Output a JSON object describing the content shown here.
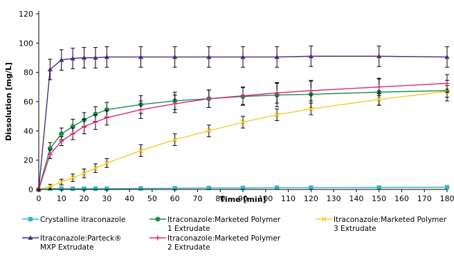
{
  "chart_data": {
    "type": "line",
    "xlabel": "Time [min]",
    "ylabel": "Dissolution [mg/L]",
    "xlim": [
      0,
      180
    ],
    "ylim": [
      0,
      120
    ],
    "xticks": [
      0,
      10,
      20,
      30,
      40,
      50,
      60,
      70,
      80,
      90,
      100,
      110,
      120,
      130,
      140,
      150,
      160,
      170,
      180
    ],
    "yticks": [
      0,
      20,
      40,
      60,
      80,
      100,
      120
    ],
    "grid": false,
    "legend_position": "bottom",
    "series": [
      {
        "name": "Crystalline itraconazole",
        "legend_lines": [
          "Crystalline itraconazole"
        ],
        "color": "#33b5c6",
        "marker": "square",
        "x": [
          0,
          5,
          10,
          15,
          20,
          25,
          30,
          45,
          60,
          75,
          90,
          105,
          120,
          150,
          180
        ],
        "y": [
          0,
          0.5,
          0.5,
          0.5,
          0.5,
          0.5,
          0.5,
          0.7,
          0.8,
          1.0,
          1.0,
          1.2,
          1.2,
          1.3,
          1.5
        ],
        "err": [
          0,
          0,
          0,
          0,
          0,
          0,
          0,
          0,
          0,
          0,
          0,
          0,
          0,
          0,
          0
        ]
      },
      {
        "name": "Itraconazole:Marketed Polymer 1 Extrudate",
        "legend_lines": [
          "Itraconazole:Marketed Polymer",
          "1 Extrudate"
        ],
        "color": "#1e8a4a",
        "marker": "circle",
        "x": [
          0,
          5,
          10,
          15,
          20,
          25,
          30,
          45,
          60,
          75,
          90,
          105,
          120,
          150,
          180
        ],
        "y": [
          0,
          28,
          38,
          43,
          47.5,
          51.5,
          54.5,
          58,
          60.5,
          62,
          63.5,
          64.5,
          65,
          66.5,
          67.5
        ],
        "err": [
          0,
          4,
          4,
          5,
          5,
          5,
          5,
          6,
          6,
          6,
          6,
          8,
          9,
          9,
          7
        ]
      },
      {
        "name": "Itraconazole:Marketed Polymer 3 Extrudate",
        "legend_lines": [
          "Itraconazole:Marketed Polymer",
          "3 Extrudate"
        ],
        "color": "#f2cc2e",
        "marker": "x",
        "x": [
          0,
          5,
          10,
          15,
          20,
          25,
          30,
          45,
          60,
          75,
          90,
          105,
          120,
          150,
          180
        ],
        "y": [
          0,
          2,
          5,
          8,
          11,
          14.5,
          18,
          26.5,
          34,
          40,
          46,
          51,
          55,
          61.5,
          67
        ],
        "err": [
          0,
          1.5,
          2,
          2.5,
          3,
          3,
          3,
          4,
          4,
          4,
          4,
          4,
          4,
          4,
          4
        ]
      },
      {
        "name": "Itraconazole:Parteck® MXP Extrudate",
        "legend_lines": [
          "Itraconazole:Parteck®",
          "MXP Extrudate"
        ],
        "color": "#4a2a7c",
        "marker": "triangle",
        "x": [
          0,
          5,
          10,
          15,
          20,
          25,
          30,
          45,
          60,
          75,
          90,
          105,
          120,
          150,
          180
        ],
        "y": [
          0,
          82,
          88.5,
          89.5,
          90,
          90,
          90.5,
          90.5,
          90.5,
          90.5,
          90.5,
          90.5,
          91,
          91,
          90.5
        ],
        "err": [
          0,
          7,
          7,
          7,
          7,
          7,
          7,
          7,
          7,
          7,
          7,
          7,
          7,
          7,
          7
        ]
      },
      {
        "name": "Itraconazole:Marketed Polymer 2 Extrudate",
        "legend_lines": [
          "Itraconazole:Marketed Polymer",
          "2 Extrudate"
        ],
        "color": "#d6287a",
        "marker": "plus",
        "x": [
          0,
          5,
          10,
          15,
          20,
          25,
          30,
          45,
          60,
          75,
          90,
          105,
          120,
          150,
          180
        ],
        "y": [
          0,
          24,
          33,
          38,
          43,
          46,
          49,
          54.5,
          58.5,
          62,
          64,
          66,
          67.5,
          70,
          72.5
        ],
        "err": [
          0,
          3,
          3,
          4,
          5,
          5,
          5,
          6,
          6,
          6,
          6,
          7,
          7,
          6,
          6
        ]
      }
    ]
  }
}
